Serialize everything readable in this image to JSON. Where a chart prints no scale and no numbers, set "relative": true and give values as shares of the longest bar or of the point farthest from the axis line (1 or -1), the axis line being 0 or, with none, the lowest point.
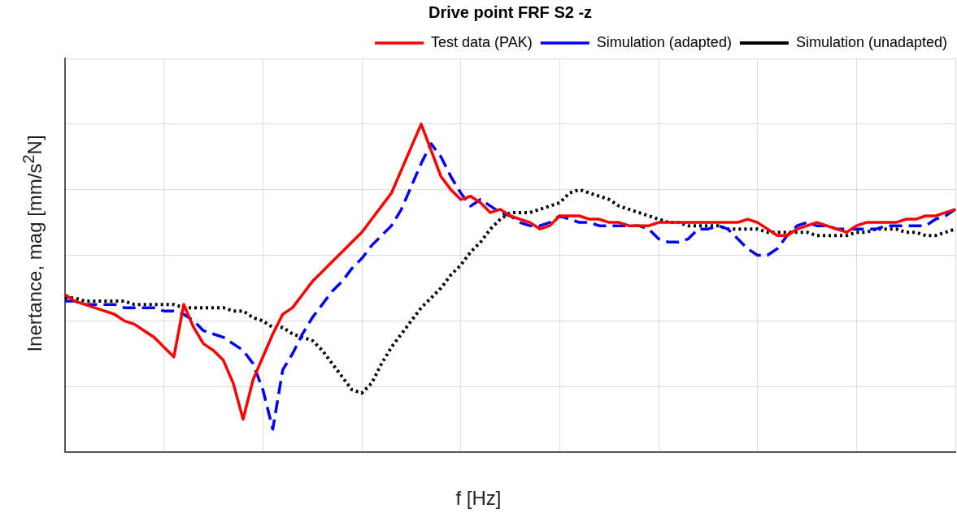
{
  "chart_data": {
    "type": "line",
    "title": "Drive point FRF S2 -z",
    "xlabel": "f [Hz]",
    "ylabel": "Inertance, mag [mm/s$^{2}$N]",
    "relative": true,
    "grid": true,
    "legend": "top right",
    "marker": "none",
    "categories": [
      null,
      null,
      null,
      null,
      null,
      null,
      null,
      null,
      null,
      null,
      null,
      null,
      null,
      null,
      null,
      null,
      null,
      null,
      null,
      null,
      null,
      null,
      null,
      null,
      null,
      null,
      null,
      null,
      null,
      null,
      null,
      null,
      null,
      null,
      null,
      null,
      null,
      null,
      null,
      null,
      null,
      null,
      null,
      null,
      null,
      null,
      null,
      null,
      null,
      null,
      null,
      null,
      null,
      null,
      null,
      null,
      null,
      null,
      null,
      null,
      null,
      null,
      null,
      null,
      null,
      null,
      null,
      null,
      null,
      null,
      null,
      null,
      null,
      null,
      null,
      null,
      null,
      null,
      null,
      null,
      null,
      null,
      null,
      null,
      null,
      null,
      null,
      null,
      null,
      null,
      null
    ],
    "series": [
      {
        "name": "Test data (PAK)",
        "color": "#ff0000",
        "line_style": "solid",
        "values": [
          0.48,
          0.46,
          0.45,
          0.44,
          0.43,
          0.42,
          0.4,
          0.39,
          0.37,
          0.35,
          0.32,
          0.29,
          0.45,
          0.38,
          0.33,
          0.31,
          0.28,
          0.21,
          0.1,
          0.22,
          0.29,
          0.36,
          0.42,
          0.44,
          0.48,
          0.52,
          0.55,
          0.58,
          0.61,
          0.64,
          0.67,
          0.71,
          0.75,
          0.79,
          0.86,
          0.93,
          1,
          0.92,
          0.84,
          0.8,
          0.77,
          0.78,
          0.76,
          0.73,
          0.74,
          0.72,
          0.71,
          0.7,
          0.68,
          0.69,
          0.72,
          0.72,
          0.72,
          0.71,
          0.71,
          0.7,
          0.7,
          0.69,
          0.69,
          0.69,
          0.7,
          0.7,
          0.7,
          0.7,
          0.7,
          0.7,
          0.7,
          0.7,
          0.7,
          0.71,
          0.7,
          0.68,
          0.66,
          0.66,
          0.68,
          0.69,
          0.7,
          0.69,
          0.68,
          0.67,
          0.69,
          0.7,
          0.7,
          0.7,
          0.7,
          0.71,
          0.71,
          0.72,
          0.72,
          0.73,
          0.74
        ]
      },
      {
        "name": "Simulation (adapted)",
        "color": "#0000ff",
        "line_style": "dashed",
        "values": [
          0.46,
          0.46,
          0.45,
          0.45,
          0.45,
          0.45,
          0.44,
          0.44,
          0.44,
          0.44,
          0.43,
          0.43,
          0.42,
          0.4,
          0.37,
          0.36,
          0.35,
          0.33,
          0.31,
          0.27,
          0.19,
          0.07,
          0.25,
          0.3,
          0.36,
          0.41,
          0.45,
          0.49,
          0.52,
          0.56,
          0.59,
          0.63,
          0.66,
          0.69,
          0.74,
          0.81,
          0.88,
          0.94,
          0.9,
          0.84,
          0.79,
          0.75,
          0.77,
          0.75,
          0.73,
          0.72,
          0.7,
          0.69,
          0.69,
          0.7,
          0.72,
          0.71,
          0.7,
          0.7,
          0.69,
          0.69,
          0.69,
          0.69,
          0.69,
          0.68,
          0.65,
          0.64,
          0.64,
          0.65,
          0.68,
          0.68,
          0.69,
          0.68,
          0.65,
          0.62,
          0.6,
          0.6,
          0.62,
          0.66,
          0.69,
          0.7,
          0.69,
          0.69,
          0.68,
          0.68,
          0.68,
          0.68,
          0.68,
          0.69,
          0.69,
          0.69,
          0.69,
          0.69,
          0.71,
          0.72,
          0.74
        ]
      },
      {
        "name": "Simulation (unadapted)",
        "color": "#000000",
        "line_style": "dotted",
        "values": [
          0.47,
          0.47,
          0.46,
          0.46,
          0.46,
          0.46,
          0.46,
          0.45,
          0.45,
          0.45,
          0.45,
          0.45,
          0.44,
          0.44,
          0.44,
          0.44,
          0.44,
          0.43,
          0.43,
          0.41,
          0.4,
          0.38,
          0.38,
          0.36,
          0.35,
          0.34,
          0.31,
          0.27,
          0.23,
          0.19,
          0.18,
          0.21,
          0.27,
          0.32,
          0.36,
          0.4,
          0.44,
          0.47,
          0.5,
          0.54,
          0.57,
          0.61,
          0.64,
          0.68,
          0.71,
          0.73,
          0.73,
          0.73,
          0.74,
          0.75,
          0.76,
          0.79,
          0.8,
          0.79,
          0.78,
          0.77,
          0.75,
          0.74,
          0.73,
          0.72,
          0.71,
          0.7,
          0.7,
          0.69,
          0.69,
          0.69,
          0.69,
          0.68,
          0.68,
          0.68,
          0.68,
          0.67,
          0.67,
          0.67,
          0.67,
          0.67,
          0.66,
          0.66,
          0.66,
          0.66,
          0.67,
          0.67,
          0.68,
          0.68,
          0.68,
          0.67,
          0.67,
          0.66,
          0.66,
          0.67,
          0.68
        ]
      }
    ]
  }
}
